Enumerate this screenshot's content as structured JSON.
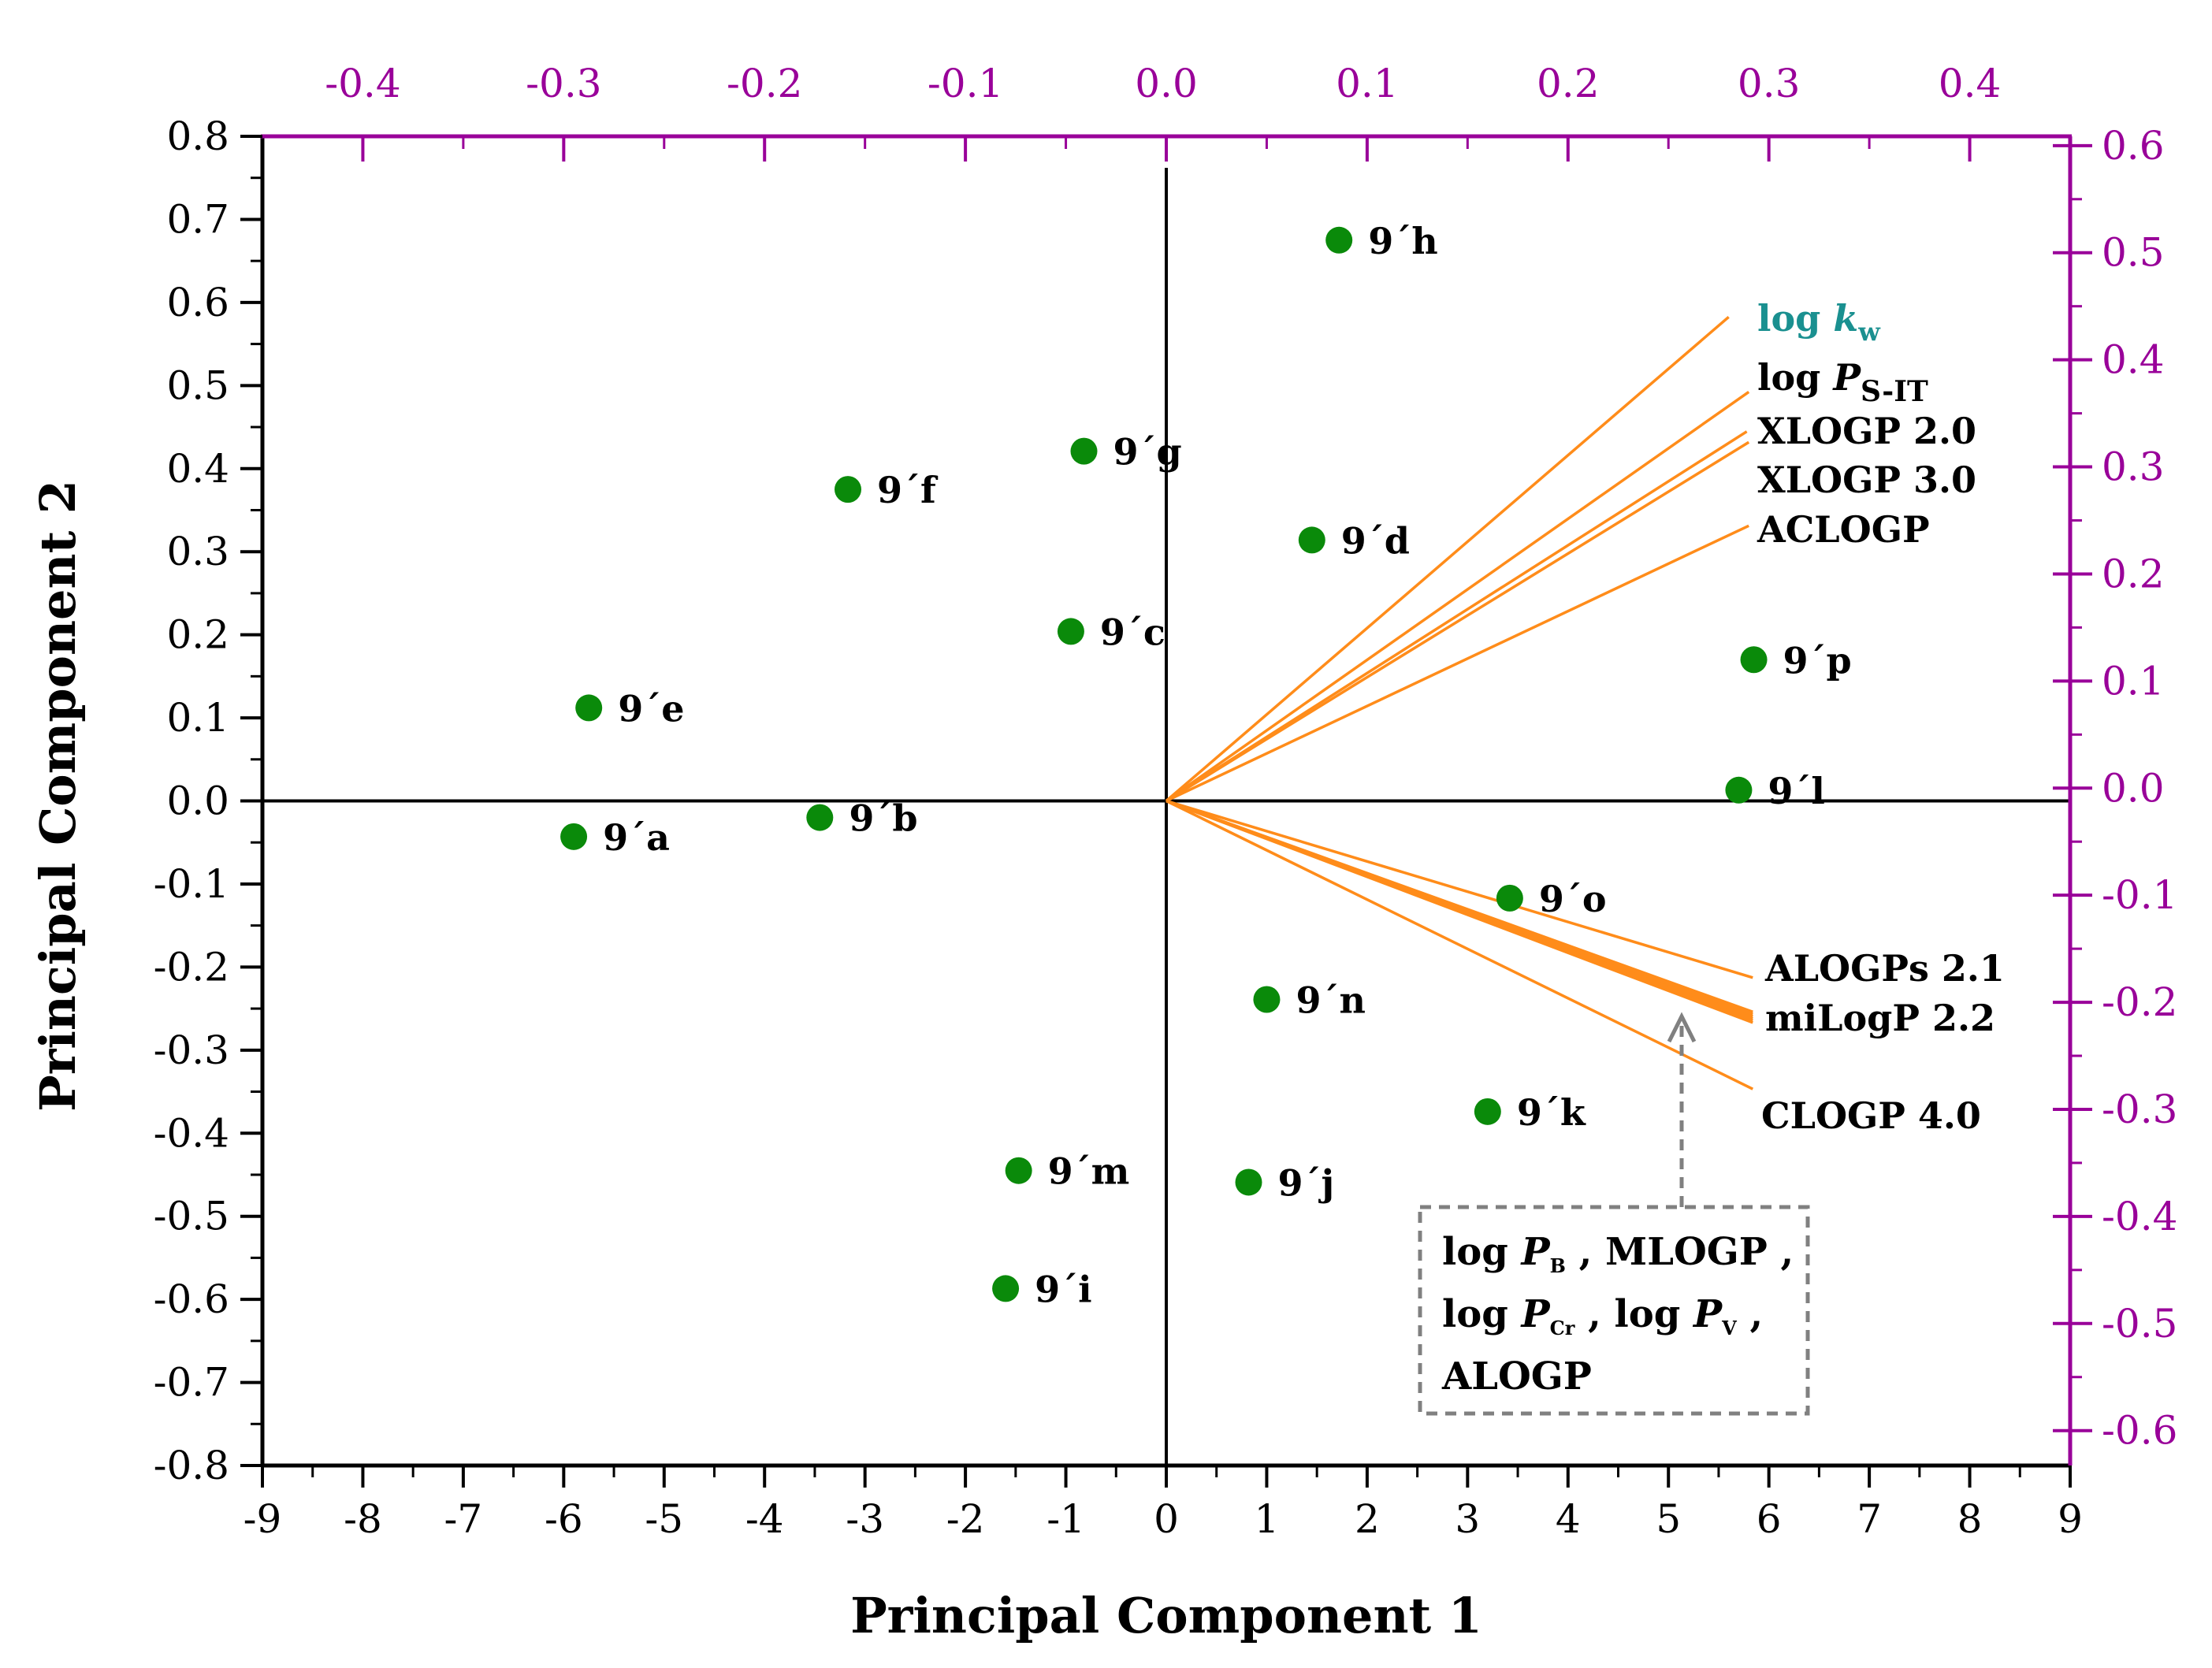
{
  "chart_data": {
    "type": "biplot",
    "xlabel": "Principal Component 1",
    "ylabel": "Principal Component 2",
    "xlim": [
      -9,
      9
    ],
    "ylim": [
      -0.8,
      0.8
    ],
    "x_ticks": [
      "-9",
      "-8",
      "-7",
      "-6",
      "-5",
      "-4",
      "-3",
      "-2",
      "-1",
      "0",
      "1",
      "2",
      "3",
      "4",
      "5",
      "6",
      "7",
      "8",
      "9"
    ],
    "y_ticks": [
      "-0.8",
      "-0.7",
      "-0.6",
      "-0.5",
      "-0.4",
      "-0.3",
      "-0.2",
      "-0.1",
      "0.0",
      "0.1",
      "0.2",
      "0.3",
      "0.4",
      "0.5",
      "0.6",
      "0.7",
      "0.8"
    ],
    "top_axis": {
      "lim": [
        -0.45,
        0.45
      ],
      "ticks": [
        "-0.4",
        "-0.3",
        "-0.2",
        "-0.1",
        "0.0",
        "0.1",
        "0.2",
        "0.3",
        "0.4"
      ],
      "color": "#990099"
    },
    "right_axis": {
      "lim": [
        -0.6326,
        0.6087
      ],
      "ticks": [
        "-0.6",
        "-0.5",
        "-0.4",
        "-0.3",
        "-0.2",
        "-0.1",
        "0.0",
        "0.1",
        "0.2",
        "0.3",
        "0.4",
        "0.5",
        "0.6"
      ],
      "color": "#990099"
    },
    "scores": [
      {
        "label": "9´a",
        "x": -5.9,
        "y": -0.043
      },
      {
        "label": "9´b",
        "x": -3.45,
        "y": -0.02
      },
      {
        "label": "9´c",
        "x": -0.95,
        "y": 0.204
      },
      {
        "label": "9´d",
        "x": 1.45,
        "y": 0.314
      },
      {
        "label": "9´e",
        "x": -5.75,
        "y": 0.112
      },
      {
        "label": "9´f",
        "x": -3.17,
        "y": 0.375
      },
      {
        "label": "9´g",
        "x": -0.82,
        "y": 0.421
      },
      {
        "label": "9´h",
        "x": 1.72,
        "y": 0.675
      },
      {
        "label": "9´i",
        "x": -1.6,
        "y": -0.587
      },
      {
        "label": "9´j",
        "x": 0.82,
        "y": -0.459
      },
      {
        "label": "9´k",
        "x": 3.2,
        "y": -0.374
      },
      {
        "label": "9´l",
        "x": 5.7,
        "y": 0.013
      },
      {
        "label": "9´m",
        "x": -1.47,
        "y": -0.445
      },
      {
        "label": "9´n",
        "x": 1.0,
        "y": -0.239
      },
      {
        "label": "9´o",
        "x": 3.42,
        "y": -0.117
      },
      {
        "label": "9´p",
        "x": 5.85,
        "y": 0.17
      }
    ],
    "loadings": [
      {
        "name": "log kw",
        "x": 0.28,
        "y": 0.44
      },
      {
        "name": "log PS-IT",
        "x": 0.29,
        "y": 0.37
      },
      {
        "name": "XLOGP 2.0",
        "x": 0.289,
        "y": 0.333
      },
      {
        "name": "XLOGP 3.0",
        "x": 0.29,
        "y": 0.323
      },
      {
        "name": "ACLOGP",
        "x": 0.29,
        "y": 0.245
      },
      {
        "name": "ALOGPs 2.1",
        "x": 0.292,
        "y": -0.177
      },
      {
        "name": "miLogP 2.2",
        "x": 0.292,
        "y": -0.209
      },
      {
        "name": "log PB",
        "x": 0.292,
        "y": -0.213
      },
      {
        "name": "MLOGP",
        "x": 0.292,
        "y": -0.215
      },
      {
        "name": "log PCr",
        "x": 0.292,
        "y": -0.211
      },
      {
        "name": "log PV",
        "x": 0.292,
        "y": -0.217
      },
      {
        "name": "ALOGP",
        "x": 0.292,
        "y": -0.219
      },
      {
        "name": "CLOGP 4.0",
        "x": 0.292,
        "y": -0.281
      }
    ],
    "point_color": "#0a8a0a",
    "loading_color": "#ff8c1a"
  },
  "labels": {
    "log_kw_main": "log ",
    "log_kw_italic": "k",
    "log_kw_sub": "w",
    "log_psit_main": "log ",
    "log_psit_italic": "P",
    "log_psit_sub": "S-IT",
    "xlogp2": "XLOGP 2.0",
    "xlogp3": "XLOGP 3.0",
    "aclogp": "ACLOGP",
    "alogps": "ALOGPs 2.1",
    "milogp": "miLogP 2.2",
    "clogp": "CLOGP 4.0"
  },
  "note": {
    "l1_log": "log ",
    "l1_p": "P",
    "l1_sub": "B",
    "l1_rest": " , MLOGP ,",
    "l2_log": "log ",
    "l2_p": "P",
    "l2_sub": "Cr",
    "l2_mid": " , log ",
    "l2_p2": "P",
    "l2_sub2": "V",
    "l2_rest": " ,",
    "l3": "ALOGP"
  }
}
